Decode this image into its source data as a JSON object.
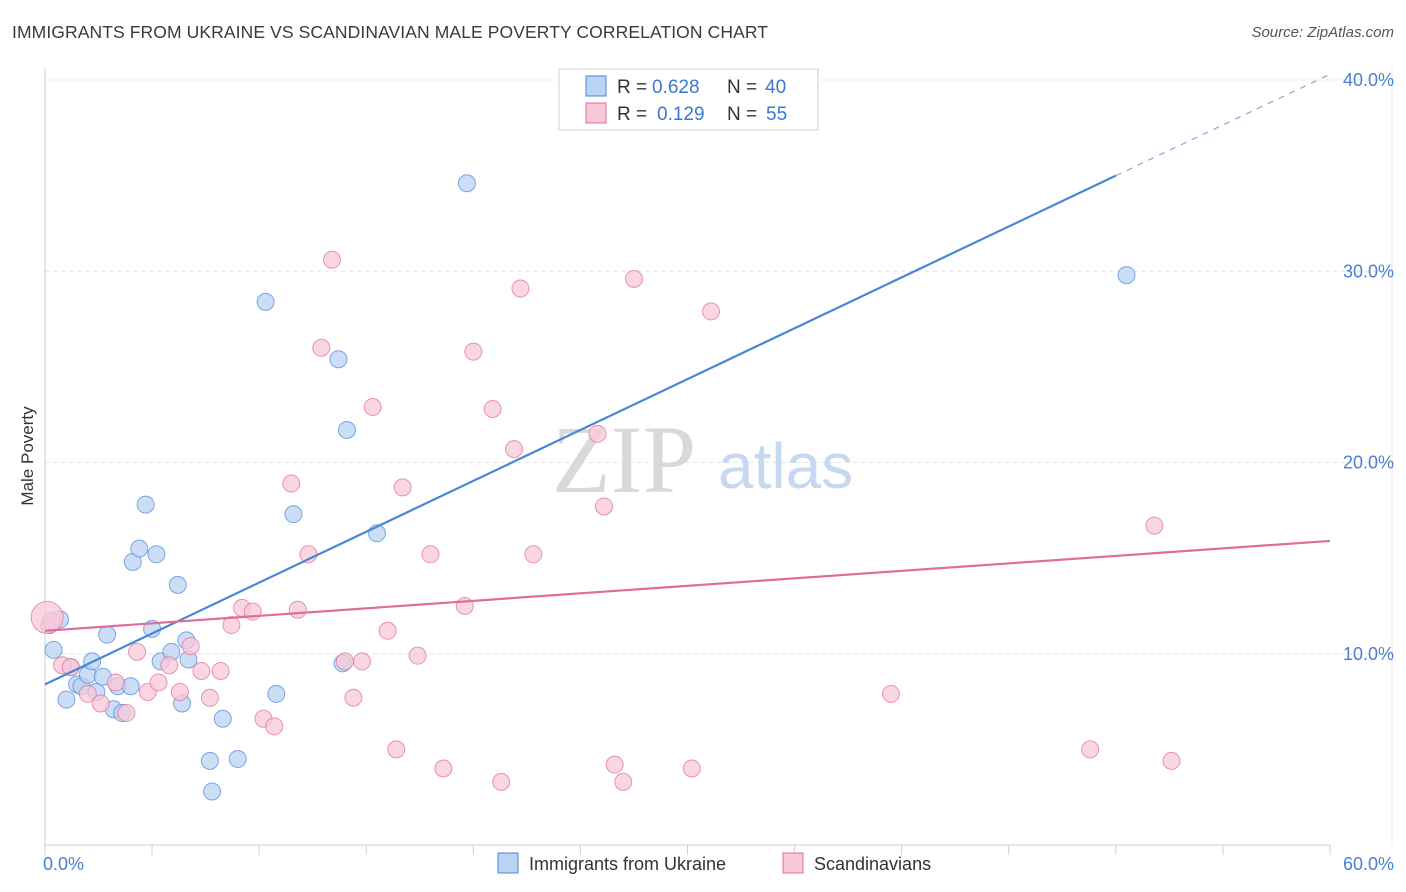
{
  "chart_data": {
    "type": "scatter",
    "title": "IMMIGRANTS FROM UKRAINE VS SCANDINAVIAN MALE POVERTY CORRELATION CHART",
    "source": "Source: ZipAtlas.com",
    "xlabel": "",
    "ylabel": "Male Poverty",
    "xlim": [
      0,
      60
    ],
    "ylim": [
      0,
      40
    ],
    "x_tick_labels": [
      "0.0%",
      "60.0%"
    ],
    "y_ticks": [
      10,
      20,
      30,
      40
    ],
    "y_tick_labels": [
      "10.0%",
      "20.0%",
      "30.0%",
      "40.0%"
    ],
    "grid": true,
    "legend": {
      "placement": "top-center",
      "entries": [
        {
          "r_label": "R =",
          "r_value": "0.628",
          "n_label": "N =",
          "n_value": "40"
        },
        {
          "r_label": "R =",
          "r_value": "0.129",
          "n_label": "N =",
          "n_value": "55"
        }
      ]
    },
    "watermark": {
      "zip": "ZIP",
      "atlas": "atlas"
    },
    "series": [
      {
        "name": "Immigrants from Ukraine",
        "color": "#4a86d8",
        "fill": "#b9d3f3",
        "trend": {
          "x0": 0,
          "y0": 8.4,
          "x1": 50.0,
          "y1": 35.0,
          "dash_to_x": 60,
          "dash_to_y": 40.3
        },
        "points": [
          [
            0.2,
            11.5
          ],
          [
            0.4,
            10.2
          ],
          [
            0.7,
            11.8
          ],
          [
            1.0,
            7.6
          ],
          [
            1.2,
            9.3
          ],
          [
            1.5,
            8.4
          ],
          [
            1.7,
            8.3
          ],
          [
            2.0,
            8.9
          ],
          [
            2.2,
            9.6
          ],
          [
            2.4,
            8.0
          ],
          [
            2.7,
            8.8
          ],
          [
            2.9,
            11.0
          ],
          [
            3.2,
            7.1
          ],
          [
            3.4,
            8.3
          ],
          [
            3.6,
            6.9
          ],
          [
            4.0,
            8.3
          ],
          [
            4.1,
            14.8
          ],
          [
            4.4,
            15.5
          ],
          [
            4.7,
            17.8
          ],
          [
            5.0,
            11.3
          ],
          [
            5.2,
            15.2
          ],
          [
            5.4,
            9.6
          ],
          [
            5.9,
            10.1
          ],
          [
            6.2,
            13.6
          ],
          [
            6.4,
            7.4
          ],
          [
            6.6,
            10.7
          ],
          [
            6.7,
            9.7
          ],
          [
            7.7,
            4.4
          ],
          [
            7.8,
            2.8
          ],
          [
            8.3,
            6.6
          ],
          [
            9.0,
            4.5
          ],
          [
            10.3,
            28.4
          ],
          [
            10.8,
            7.9
          ],
          [
            11.6,
            17.3
          ],
          [
            13.7,
            25.4
          ],
          [
            13.9,
            9.5
          ],
          [
            14.1,
            21.7
          ],
          [
            15.5,
            16.3
          ],
          [
            19.7,
            34.6
          ],
          [
            50.5,
            29.8
          ]
        ]
      },
      {
        "name": "Scandinavians",
        "color": "#e06c98",
        "fill": "#f8c8d8",
        "trend": {
          "x0": 0,
          "y0": 11.2,
          "x1": 60,
          "y1": 15.9
        },
        "points": [
          [
            0.3,
            11.7
          ],
          [
            0.8,
            9.4
          ],
          [
            1.2,
            9.3
          ],
          [
            2.0,
            7.9
          ],
          [
            2.6,
            7.4
          ],
          [
            3.3,
            8.5
          ],
          [
            3.8,
            6.9
          ],
          [
            4.3,
            10.1
          ],
          [
            4.8,
            8.0
          ],
          [
            5.3,
            8.5
          ],
          [
            5.8,
            9.4
          ],
          [
            6.3,
            8.0
          ],
          [
            6.8,
            10.4
          ],
          [
            7.3,
            9.1
          ],
          [
            7.7,
            7.7
          ],
          [
            8.2,
            9.1
          ],
          [
            8.7,
            11.5
          ],
          [
            9.2,
            12.4
          ],
          [
            9.7,
            12.2
          ],
          [
            10.2,
            6.6
          ],
          [
            10.7,
            6.2
          ],
          [
            11.5,
            18.9
          ],
          [
            11.8,
            12.3
          ],
          [
            12.3,
            15.2
          ],
          [
            12.9,
            26.0
          ],
          [
            13.4,
            30.6
          ],
          [
            14.0,
            9.6
          ],
          [
            14.4,
            7.7
          ],
          [
            14.8,
            9.6
          ],
          [
            15.3,
            22.9
          ],
          [
            16.0,
            11.2
          ],
          [
            16.4,
            5.0
          ],
          [
            16.7,
            18.7
          ],
          [
            17.4,
            9.9
          ],
          [
            18.0,
            15.2
          ],
          [
            18.6,
            4.0
          ],
          [
            19.6,
            12.5
          ],
          [
            20.0,
            25.8
          ],
          [
            20.9,
            22.8
          ],
          [
            21.3,
            3.3
          ],
          [
            21.9,
            20.7
          ],
          [
            22.2,
            29.1
          ],
          [
            22.8,
            15.2
          ],
          [
            25.8,
            21.5
          ],
          [
            26.1,
            17.7
          ],
          [
            26.6,
            4.2
          ],
          [
            27.0,
            3.3
          ],
          [
            27.5,
            29.6
          ],
          [
            30.2,
            4.0
          ],
          [
            31.1,
            27.9
          ],
          [
            39.5,
            7.9
          ],
          [
            48.8,
            5.0
          ],
          [
            51.8,
            16.7
          ],
          [
            52.6,
            4.4
          ],
          [
            0.1,
            11.9
          ]
        ]
      }
    ]
  }
}
